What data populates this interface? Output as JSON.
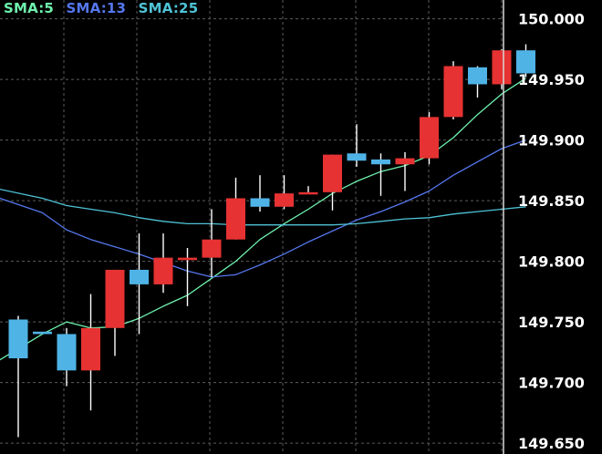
{
  "colors": {
    "background": "#000000",
    "grid": "#5c5c5c",
    "price_axis_line": "#d8d8d8",
    "axis_text": "#ffffff",
    "up_candle": "#4fb3e6",
    "down_candle": "#e63232",
    "wick": "#ffffff"
  },
  "legend": [
    {
      "label": "SMA:5",
      "color": "#6ef2ad"
    },
    {
      "label": "SMA:13",
      "color": "#5577ee"
    },
    {
      "label": "SMA:25",
      "color": "#4fc3d6"
    }
  ],
  "chart_data": {
    "type": "candlestick",
    "y_axis": {
      "position": "right",
      "ticks": [
        "150.000",
        "149.950",
        "149.900",
        "149.850",
        "149.800",
        "149.750",
        "149.700",
        "149.650"
      ],
      "range": [
        149.64,
        150.008
      ]
    },
    "grid": {
      "vertical": true,
      "horizontal": true,
      "style": "dashed"
    },
    "candles": [
      {
        "open": 149.72,
        "high": 149.755,
        "low": 149.655,
        "close": 149.752
      },
      {
        "open": 149.74,
        "high": 149.74,
        "low": 149.74,
        "close": 149.742
      },
      {
        "open": 149.71,
        "high": 149.745,
        "low": 149.697,
        "close": 149.74
      },
      {
        "open": 149.745,
        "high": 149.773,
        "low": 149.677,
        "close": 149.71
      },
      {
        "open": 149.793,
        "high": 149.793,
        "low": 149.722,
        "close": 149.745
      },
      {
        "open": 149.781,
        "high": 149.823,
        "low": 149.74,
        "close": 149.793
      },
      {
        "open": 149.803,
        "high": 149.823,
        "low": 149.774,
        "close": 149.781
      },
      {
        "open": 149.803,
        "high": 149.811,
        "low": 149.763,
        "close": 149.801
      },
      {
        "open": 149.818,
        "high": 149.843,
        "low": 149.787,
        "close": 149.803
      },
      {
        "open": 149.852,
        "high": 149.869,
        "low": 149.818,
        "close": 149.818
      },
      {
        "open": 149.845,
        "high": 149.871,
        "low": 149.841,
        "close": 149.852
      },
      {
        "open": 149.856,
        "high": 149.871,
        "low": 149.843,
        "close": 149.845
      },
      {
        "open": 149.857,
        "high": 149.862,
        "low": 149.856,
        "close": 149.856
      },
      {
        "open": 149.888,
        "high": 149.888,
        "low": 149.842,
        "close": 149.857
      },
      {
        "open": 149.883,
        "high": 149.913,
        "low": 149.878,
        "close": 149.889
      },
      {
        "open": 149.88,
        "high": 149.889,
        "low": 149.854,
        "close": 149.884
      },
      {
        "open": 149.885,
        "high": 149.89,
        "low": 149.858,
        "close": 149.88
      },
      {
        "open": 149.919,
        "high": 149.923,
        "low": 149.88,
        "close": 149.885
      },
      {
        "open": 149.961,
        "high": 149.965,
        "low": 149.917,
        "close": 149.919
      },
      {
        "open": 149.946,
        "high": 149.961,
        "low": 149.935,
        "close": 149.96
      },
      {
        "open": 149.974,
        "high": 149.975,
        "low": 149.942,
        "close": 149.946
      },
      {
        "open": 149.955,
        "high": 149.979,
        "low": 149.952,
        "close": 149.974
      }
    ],
    "series": [
      {
        "name": "SMA:5",
        "values": [
          149.717,
          149.74,
          149.75,
          149.745,
          149.746,
          149.753,
          149.763,
          149.772,
          149.786,
          149.8,
          149.818,
          149.831,
          149.843,
          149.856,
          149.866,
          149.874,
          149.879,
          149.887,
          149.902,
          149.921,
          149.938,
          149.951
        ]
      },
      {
        "name": "SMA:13",
        "values": [
          149.853,
          149.84,
          149.826,
          149.818,
          149.812,
          149.806,
          149.799,
          149.792,
          149.787,
          149.789,
          149.797,
          149.806,
          149.816,
          149.825,
          149.834,
          149.841,
          149.849,
          149.858,
          149.871,
          149.882,
          149.893,
          149.9
        ]
      },
      {
        "name": "SMA:25",
        "values": [
          149.86,
          149.852,
          149.846,
          149.843,
          149.84,
          149.836,
          149.833,
          149.831,
          149.831,
          149.83,
          149.83,
          149.83,
          149.83,
          149.83,
          149.831,
          149.833,
          149.835,
          149.836,
          149.839,
          149.841,
          149.843,
          149.845
        ]
      }
    ]
  }
}
